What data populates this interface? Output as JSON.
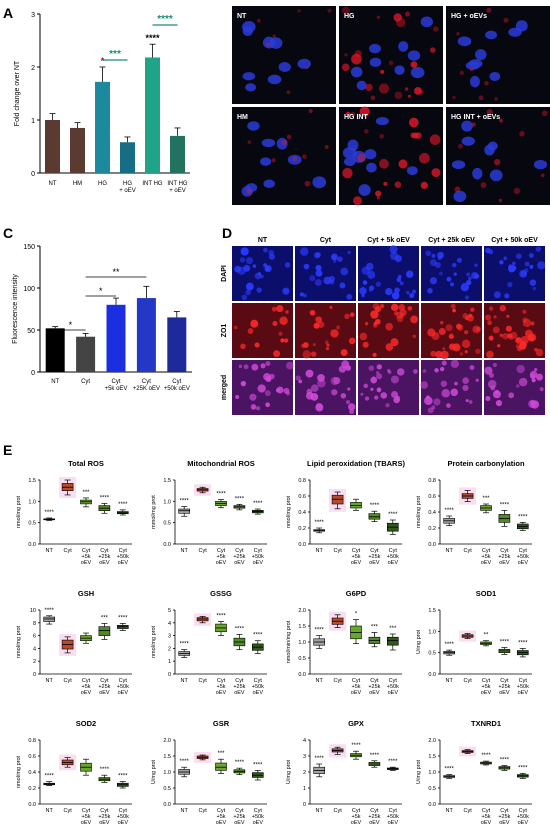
{
  "panel_letters": [
    "A",
    "B",
    "C",
    "D",
    "E"
  ],
  "colors": {
    "nt": "#5b3a32",
    "hm": "#5b3a32",
    "hg": "#1c8a9c",
    "hg_oev": "#176c86",
    "int_hg": "#1fa487",
    "int_hg_oev": "#21725f",
    "c_nt": "#000000",
    "c_cyt": "#444444",
    "c_5k": "#1b2ee0",
    "c_25k": "#2438c8",
    "c_50k": "#1f2a9a",
    "bx_nt": "#a3a3a3",
    "bx_cyt": "#b84a2e",
    "bx_5k": "#67a82a",
    "bx_25k": "#4f8a25",
    "bx_50k": "#2e5a18",
    "sig_teal": "#1a8a7a"
  },
  "chart_data": [
    {
      "id": "A",
      "type": "bar",
      "ylabel": "Fold change over NT",
      "ylim": [
        0,
        3
      ],
      "yticks": [
        "0",
        "1",
        "2",
        "3"
      ],
      "categories": [
        "NT",
        "HM",
        "HG",
        "HG\n+ oEV",
        "INT HG",
        "INT HG\n+ oEV"
      ],
      "values": [
        1.0,
        0.85,
        1.72,
        0.58,
        2.18,
        0.7
      ],
      "errors": [
        0.12,
        0.1,
        0.28,
        0.1,
        0.25,
        0.15
      ],
      "above_marks": [
        "",
        "",
        "*",
        "",
        "****",
        ""
      ],
      "brackets": [
        {
          "from": 2,
          "to": 3,
          "label": "***"
        },
        {
          "from": 4,
          "to": 5,
          "label": "****"
        }
      ]
    },
    {
      "id": "C",
      "type": "bar",
      "ylabel": "Fluorescence intensity",
      "ylim": [
        0,
        150
      ],
      "yticks": [
        "0",
        "50",
        "100",
        "150"
      ],
      "categories": [
        "NT",
        "Cyt",
        "Cyt\n+5k oEV",
        "Cyt\n+25K oEV",
        "Cyt\n+50k oEV"
      ],
      "values": [
        52,
        42,
        80,
        88,
        65
      ],
      "errors": [
        2,
        4,
        8,
        14,
        7
      ],
      "brackets": [
        {
          "from": 0,
          "to": 1,
          "label": "*"
        },
        {
          "from": 1,
          "to": 2,
          "label": "*"
        },
        {
          "from": 1,
          "to": 3,
          "label": "**"
        }
      ]
    },
    {
      "id": "E",
      "type": "boxplot",
      "categories": [
        "NT",
        "Cyt",
        "Cyt\n+5k\noEV",
        "Cyt\n+25k\noEV",
        "Cyt\n+50k\noEV"
      ],
      "plots": [
        {
          "title": "Total ROS",
          "ylabel": "nmol/mg prot",
          "yticks": [
            "0.0",
            "0.5",
            "1.0",
            "1.5"
          ],
          "ymax": 1.5,
          "box": [
            [
              0.55,
              0.57,
              0.58,
              0.59,
              0.61
            ],
            [
              1.15,
              1.25,
              1.33,
              1.42,
              1.5
            ],
            [
              0.87,
              0.94,
              0.99,
              1.03,
              1.08
            ],
            [
              0.72,
              0.78,
              0.84,
              0.9,
              0.95
            ],
            [
              0.68,
              0.71,
              0.73,
              0.76,
              0.8
            ]
          ],
          "sig": [
            "****",
            "",
            "***",
            "****",
            "****"
          ]
        },
        {
          "title": "Mitochondrial ROS",
          "ylabel": "mmol/mg prot",
          "yticks": [
            "0.0",
            "0.5",
            "1.0",
            "1.5"
          ],
          "ymax": 1.5,
          "box": [
            [
              0.65,
              0.72,
              0.78,
              0.82,
              0.88
            ],
            [
              1.2,
              1.24,
              1.27,
              1.3,
              1.33
            ],
            [
              0.85,
              0.9,
              0.95,
              1.0,
              1.04
            ],
            [
              0.8,
              0.84,
              0.87,
              0.9,
              0.93
            ],
            [
              0.7,
              0.73,
              0.76,
              0.79,
              0.82
            ]
          ],
          "sig": [
            "****",
            "",
            "****",
            "****",
            "****"
          ]
        },
        {
          "title": "Lipid peroxidation (TBARS)",
          "ylabel": "nmol/mg prot",
          "yticks": [
            "0.0",
            "0.2",
            "0.4",
            "0.6",
            "0.8"
          ],
          "ymax": 0.8,
          "box": [
            [
              0.14,
              0.16,
              0.17,
              0.18,
              0.2
            ],
            [
              0.44,
              0.5,
              0.56,
              0.61,
              0.65
            ],
            [
              0.42,
              0.45,
              0.48,
              0.52,
              0.56
            ],
            [
              0.28,
              0.31,
              0.34,
              0.38,
              0.41
            ],
            [
              0.12,
              0.16,
              0.21,
              0.26,
              0.3
            ]
          ],
          "sig": [
            "****",
            "",
            "",
            "****",
            "****"
          ]
        },
        {
          "title": "Protein carbonylation",
          "ylabel": "nmol/mg prot",
          "yticks": [
            "0.0",
            "0.2",
            "0.4",
            "0.6",
            "0.8"
          ],
          "ymax": 0.8,
          "box": [
            [
              0.23,
              0.26,
              0.29,
              0.32,
              0.35
            ],
            [
              0.53,
              0.57,
              0.6,
              0.63,
              0.67
            ],
            [
              0.39,
              0.42,
              0.45,
              0.48,
              0.5
            ],
            [
              0.22,
              0.27,
              0.32,
              0.37,
              0.42
            ],
            [
              0.17,
              0.19,
              0.22,
              0.25,
              0.27
            ]
          ],
          "sig": [
            "****",
            "",
            "***",
            "****",
            "****"
          ]
        },
        {
          "title": "GSH",
          "ylabel": "nmol/mg prot",
          "yticks": [
            "0",
            "2",
            "4",
            "6",
            "8",
            "10"
          ],
          "ymax": 10,
          "box": [
            [
              7.8,
              8.2,
              8.6,
              8.9,
              9.1
            ],
            [
              3.3,
              3.9,
              4.6,
              5.3,
              5.8
            ],
            [
              4.8,
              5.2,
              5.6,
              6.0,
              6.4
            ],
            [
              5.4,
              6.0,
              6.8,
              7.4,
              7.9
            ],
            [
              6.8,
              7.1,
              7.4,
              7.6,
              7.9
            ]
          ],
          "sig": [
            "****",
            "",
            "",
            "***",
            "****"
          ]
        },
        {
          "title": "GSSG",
          "ylabel": "nmol/mg prot",
          "yticks": [
            "0",
            "1",
            "2",
            "3",
            "4",
            "5"
          ],
          "ymax": 5,
          "box": [
            [
              1.3,
              1.45,
              1.6,
              1.75,
              1.9
            ],
            [
              4.0,
              4.15,
              4.3,
              4.4,
              4.5
            ],
            [
              3.0,
              3.3,
              3.6,
              3.9,
              4.1
            ],
            [
              1.9,
              2.2,
              2.5,
              2.8,
              3.1
            ],
            [
              1.6,
              1.85,
              2.1,
              2.35,
              2.6
            ]
          ],
          "sig": [
            "****",
            "",
            "****",
            "****",
            "****"
          ]
        },
        {
          "title": "G6PD",
          "ylabel": "nmol/min/mg prot",
          "yticks": [
            "0.0",
            "0.5",
            "1.0",
            "1.5",
            "2.0"
          ],
          "ymax": 2.0,
          "box": [
            [
              0.8,
              0.9,
              1.0,
              1.1,
              1.2
            ],
            [
              1.45,
              1.55,
              1.65,
              1.75,
              1.85
            ],
            [
              0.95,
              1.1,
              1.3,
              1.5,
              1.7
            ],
            [
              0.85,
              0.95,
              1.05,
              1.15,
              1.3
            ],
            [
              0.75,
              0.9,
              1.05,
              1.15,
              1.25
            ]
          ],
          "sig": [
            "****",
            "",
            "*",
            "***",
            "***"
          ]
        },
        {
          "title": "SOD1",
          "ylabel": "U/mg prot",
          "yticks": [
            "0.0",
            "0.5",
            "1.0",
            "1.5"
          ],
          "ymax": 1.5,
          "box": [
            [
              0.44,
              0.47,
              0.5,
              0.53,
              0.56
            ],
            [
              0.83,
              0.86,
              0.89,
              0.92,
              0.95
            ],
            [
              0.66,
              0.69,
              0.72,
              0.75,
              0.78
            ],
            [
              0.46,
              0.5,
              0.54,
              0.58,
              0.62
            ],
            [
              0.4,
              0.45,
              0.5,
              0.55,
              0.6
            ]
          ],
          "sig": [
            "****",
            "",
            "**",
            "****",
            "****"
          ]
        },
        {
          "title": "SOD2",
          "ylabel": "nmol/mg prot",
          "yticks": [
            "0.0",
            "0.2",
            "0.4",
            "0.6",
            "0.8"
          ],
          "ymax": 0.8,
          "box": [
            [
              0.23,
              0.24,
              0.25,
              0.26,
              0.28
            ],
            [
              0.46,
              0.49,
              0.52,
              0.55,
              0.58
            ],
            [
              0.36,
              0.41,
              0.46,
              0.51,
              0.56
            ],
            [
              0.27,
              0.29,
              0.31,
              0.33,
              0.36
            ],
            [
              0.2,
              0.22,
              0.24,
              0.26,
              0.28
            ]
          ],
          "sig": [
            "****",
            "",
            "",
            "****",
            "****"
          ]
        },
        {
          "title": "GSR",
          "ylabel": "U/mg prot",
          "yticks": [
            "0.0",
            "0.5",
            "1.0",
            "1.5",
            "2.0"
          ],
          "ymax": 2.0,
          "box": [
            [
              0.85,
              0.93,
              1.0,
              1.08,
              1.15
            ],
            [
              1.38,
              1.42,
              1.46,
              1.5,
              1.53
            ],
            [
              0.95,
              1.05,
              1.15,
              1.28,
              1.4
            ],
            [
              0.92,
              0.97,
              1.02,
              1.07,
              1.12
            ],
            [
              0.75,
              0.83,
              0.9,
              0.98,
              1.05
            ]
          ],
          "sig": [
            "****",
            "",
            "***",
            "****",
            "****"
          ]
        },
        {
          "title": "GPX",
          "ylabel": "U/mg prot",
          "yticks": [
            "0",
            "1",
            "2",
            "3",
            "4"
          ],
          "ymax": 4,
          "box": [
            [
              1.7,
              1.9,
              2.1,
              2.3,
              2.5
            ],
            [
              3.1,
              3.25,
              3.35,
              3.45,
              3.55
            ],
            [
              2.8,
              2.95,
              3.05,
              3.15,
              3.3
            ],
            [
              2.3,
              2.4,
              2.5,
              2.6,
              2.7
            ],
            [
              2.1,
              2.15,
              2.2,
              2.25,
              2.3
            ]
          ],
          "sig": [
            "****",
            "",
            "****",
            "****",
            "****"
          ]
        },
        {
          "title": "TXNRD1",
          "ylabel": "U/mg prot",
          "yticks": [
            "0.0",
            "0.5",
            "1.0",
            "1.5",
            "2.0"
          ],
          "ymax": 2.0,
          "box": [
            [
              0.8,
              0.83,
              0.86,
              0.89,
              0.92
            ],
            [
              1.58,
              1.61,
              1.64,
              1.67,
              1.7
            ],
            [
              1.22,
              1.25,
              1.28,
              1.31,
              1.34
            ],
            [
              1.05,
              1.09,
              1.13,
              1.17,
              1.2
            ],
            [
              0.8,
              0.84,
              0.88,
              0.92,
              0.96
            ]
          ],
          "sig": [
            "****",
            "",
            "****",
            "****",
            "****"
          ]
        }
      ]
    }
  ],
  "micrographs_B": [
    "NT",
    "HG",
    "HG + oEVs",
    "HM",
    "HG INT",
    "HG INT + oEVs"
  ],
  "micrographs_D": {
    "columns": [
      "NT",
      "Cyt",
      "Cyt + 5k oEV",
      "Cyt + 25k oEV",
      "Cyt + 50k oEV"
    ],
    "rows": [
      "DAPI",
      "ZO1",
      "merged"
    ]
  }
}
